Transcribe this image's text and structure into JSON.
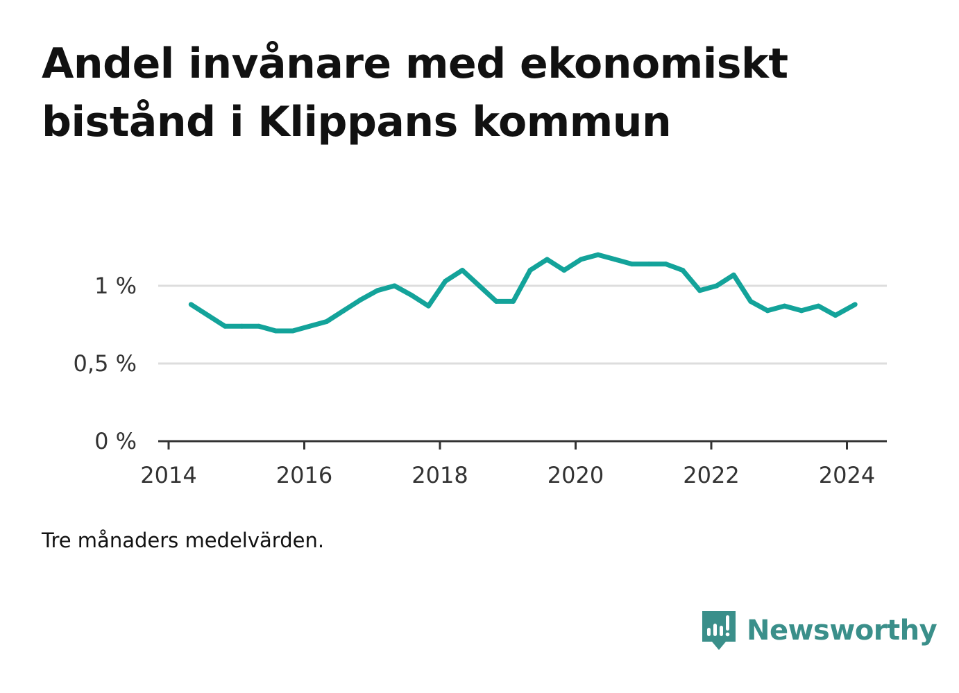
{
  "title": "Andel invånare med ekonomiskt bistånd i Klippans kommun",
  "note": "Tre månaders medelvärden.",
  "brand": {
    "name": "Newsworthy",
    "icon": "newsworthy-logo-icon",
    "color": "#3a8f8a"
  },
  "colors": {
    "line": "#13a39a",
    "grid": "#dddddd",
    "axis": "#333333"
  },
  "chart_data": {
    "type": "line",
    "title": "Andel invånare med ekonomiskt bistånd i Klippans kommun",
    "xlabel": "",
    "ylabel": "",
    "xlim": [
      2014,
      2024.6
    ],
    "ylim": [
      0,
      1.25
    ],
    "x_ticks": [
      2014,
      2016,
      2018,
      2020,
      2022,
      2024
    ],
    "x_tick_labels": [
      "2014",
      "2016",
      "2018",
      "2020",
      "2022",
      "2024"
    ],
    "y_ticks": [
      0,
      0.5,
      1
    ],
    "y_tick_labels": [
      "0 %",
      "0,5 %",
      "1 %"
    ],
    "grid": true,
    "legend": "none",
    "series": [
      {
        "x": [
          2014.33,
          2014.58,
          2014.83,
          2015.08,
          2015.33,
          2015.58,
          2015.83,
          2016.08,
          2016.33,
          2016.58,
          2016.83,
          2017.08,
          2017.33,
          2017.58,
          2017.83,
          2018.08,
          2018.33,
          2018.58,
          2018.83,
          2019.08,
          2019.33,
          2019.58,
          2019.83,
          2020.08,
          2020.33,
          2020.58,
          2020.83,
          2021.08,
          2021.33,
          2021.58,
          2021.83,
          2022.08,
          2022.33,
          2022.58,
          2022.83,
          2023.08,
          2023.33,
          2023.58,
          2023.83,
          2024.12
        ],
        "values": [
          0.88,
          0.81,
          0.74,
          0.74,
          0.74,
          0.71,
          0.71,
          0.74,
          0.77,
          0.84,
          0.91,
          0.97,
          1.0,
          0.94,
          0.87,
          1.03,
          1.1,
          1.0,
          0.9,
          0.9,
          1.1,
          1.17,
          1.1,
          1.17,
          1.2,
          1.17,
          1.14,
          1.14,
          1.14,
          1.1,
          0.97,
          1.0,
          1.07,
          0.9,
          0.84,
          0.87,
          0.84,
          0.87,
          0.81,
          0.88
        ]
      }
    ]
  }
}
